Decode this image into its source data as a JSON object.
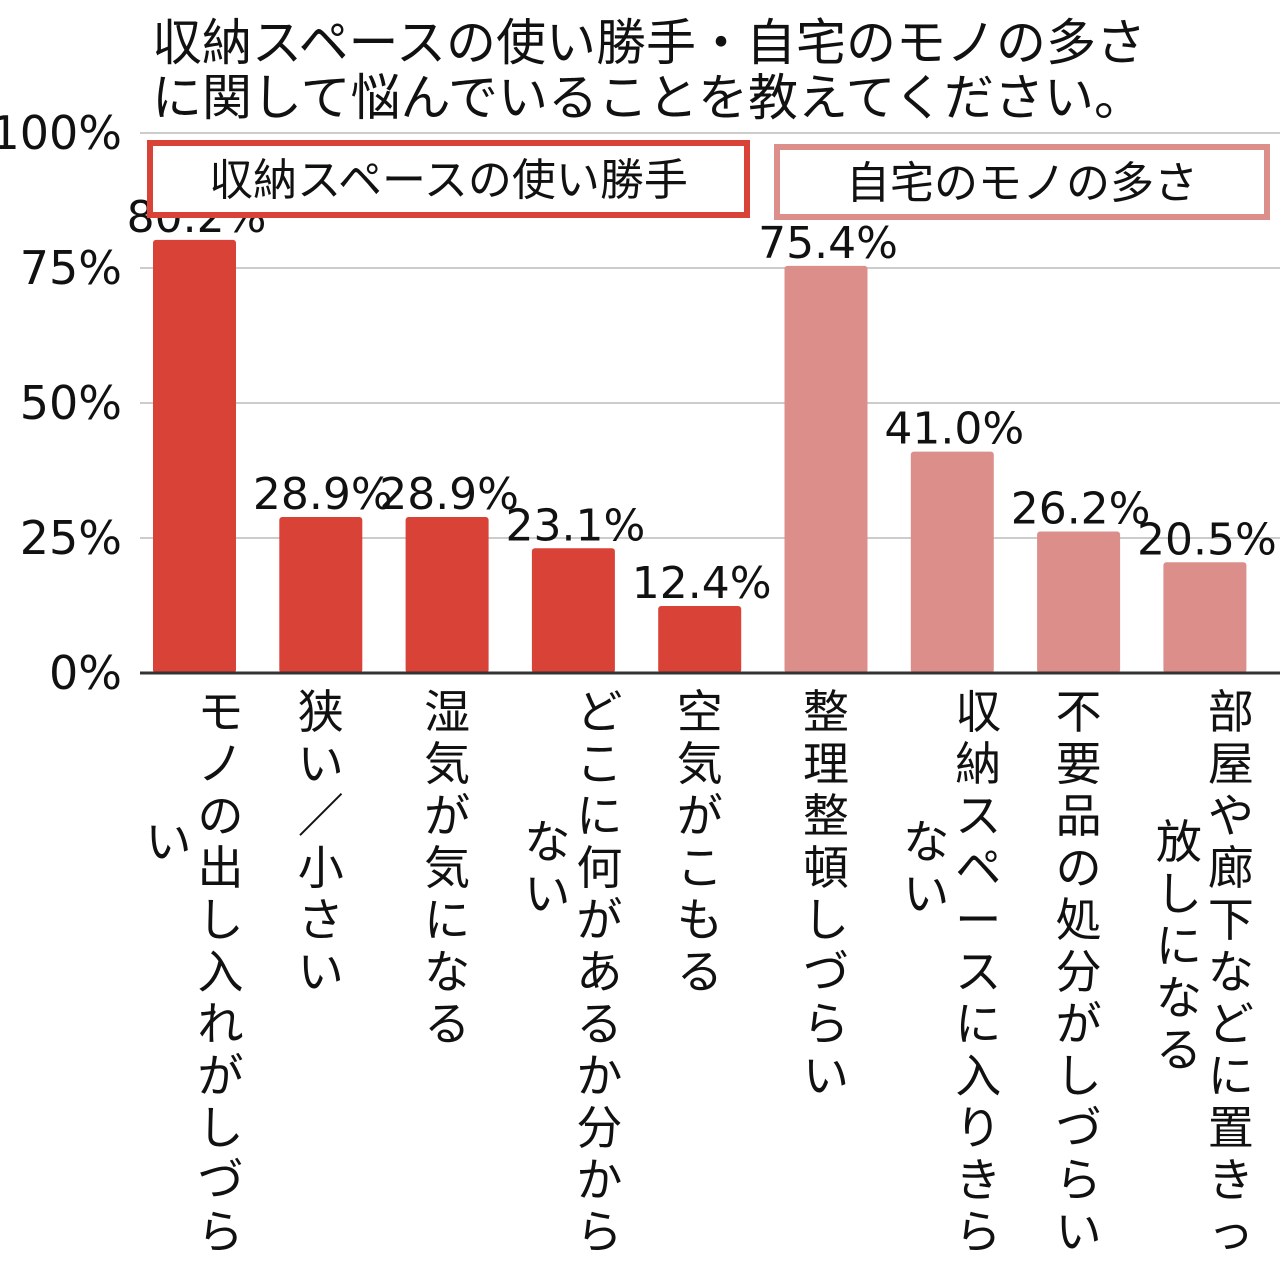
{
  "title": {
    "line1": "収納スペースの使い勝手・自宅のモノの多さ",
    "line2": "に関して悩んでいることを教えてください。"
  },
  "colors": {
    "group1": "#d94237",
    "group2": "#dc8f8a",
    "grid": "#cccccc",
    "axis": "#333333"
  },
  "chart_data": {
    "type": "bar",
    "ylim": [
      0,
      100
    ],
    "yticks": [
      {
        "value": 0,
        "label": "0%"
      },
      {
        "value": 25,
        "label": "25%"
      },
      {
        "value": 50,
        "label": "50%"
      },
      {
        "value": 75,
        "label": "75%"
      },
      {
        "value": 100,
        "label": "100%"
      }
    ],
    "grid": true,
    "groups": [
      {
        "name": "収納スペースの使い勝手",
        "color": "#d94237"
      },
      {
        "name": "自宅のモノの多さ",
        "color": "#dc8f8a"
      }
    ],
    "bars": [
      {
        "category": "モノの出し入れがしづらい",
        "value": 80.2,
        "label": "80.2%",
        "group": 0
      },
      {
        "category": "狭い／小さい",
        "value": 28.9,
        "label": "28.9%",
        "group": 0
      },
      {
        "category": "湿気が気になる",
        "value": 28.9,
        "label": "28.9%",
        "group": 0
      },
      {
        "category": "どこに何があるか分からない",
        "value": 23.1,
        "label": "23.1%",
        "group": 0
      },
      {
        "category": "空気がこもる",
        "value": 12.4,
        "label": "12.4%",
        "group": 0
      },
      {
        "category": "整理整頓しづらい",
        "value": 75.4,
        "label": "75.4%",
        "group": 1
      },
      {
        "category": "収納スペースに入りきらない",
        "value": 41.0,
        "label": "41.0%",
        "group": 1
      },
      {
        "category": "不要品の処分がしづらい",
        "value": 26.2,
        "label": "26.2%",
        "group": 1
      },
      {
        "category": "部屋や廊下などに置きっ放しになる",
        "value": 20.5,
        "label": "20.5%",
        "group": 1
      }
    ]
  }
}
